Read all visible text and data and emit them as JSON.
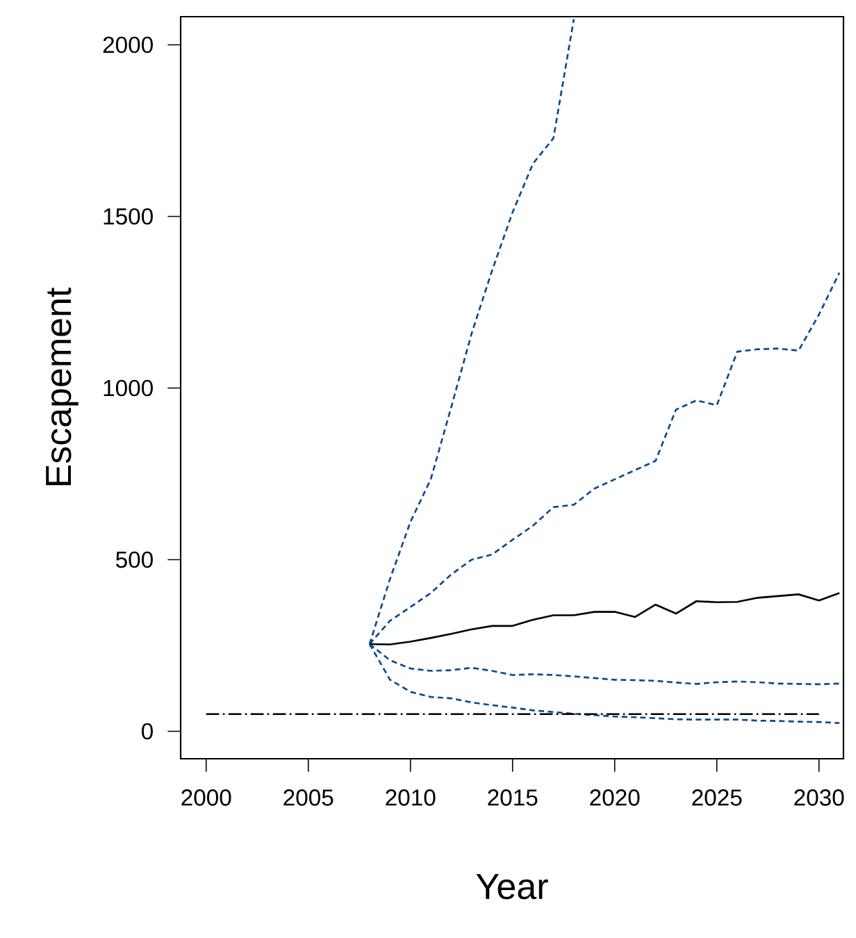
{
  "chart_data": {
    "type": "line",
    "xlabel": "Year",
    "ylabel": "Escapement",
    "xlim": [
      1998.75,
      2031.2
    ],
    "ylim": [
      -80,
      2082
    ],
    "xticks": [
      2000,
      2005,
      2010,
      2015,
      2020,
      2025,
      2030
    ],
    "yticks": [
      0,
      500,
      1000,
      1500,
      2000
    ],
    "series": [
      {
        "color": "#0b4a8c",
        "line_style": "dashed",
        "x": [
          2008,
          2009,
          2010,
          2011,
          2012,
          2013,
          2014,
          2015,
          2016,
          2017,
          2018
        ],
        "values": [
          254,
          444,
          610,
          735,
          945,
          1160,
          1343,
          1512,
          1654,
          1728,
          2075
        ]
      },
      {
        "color": "#0b4a8c",
        "line_style": "dashed",
        "x": [
          2008,
          2009,
          2010,
          2011,
          2012,
          2013,
          2014,
          2015,
          2016,
          2017,
          2018,
          2019,
          2020,
          2021,
          2022,
          2023,
          2024,
          2025,
          2026,
          2027,
          2028,
          2029,
          2030,
          2031
        ],
        "values": [
          254,
          322,
          362,
          403,
          457,
          500,
          515,
          558,
          599,
          653,
          660,
          707,
          734,
          761,
          788,
          937,
          964,
          950,
          1106,
          1113,
          1115,
          1109,
          1214,
          1336
        ]
      },
      {
        "color": "#000000",
        "line_style": "solid",
        "x": [
          2008,
          2009,
          2010,
          2011,
          2012,
          2013,
          2014,
          2015,
          2016,
          2017,
          2018,
          2019,
          2020,
          2021,
          2022,
          2023,
          2024,
          2025,
          2026,
          2027,
          2028,
          2029,
          2030,
          2031
        ],
        "values": [
          254,
          253,
          261,
          272,
          284,
          297,
          307,
          307,
          325,
          338,
          338,
          348,
          348,
          333,
          369,
          343,
          379,
          376,
          377,
          389,
          394,
          399,
          381,
          403
        ]
      },
      {
        "color": "#0b4a8c",
        "line_style": "dashed",
        "x": [
          2008,
          2009,
          2010,
          2011,
          2012,
          2013,
          2014,
          2015,
          2016,
          2017,
          2018,
          2019,
          2020,
          2021,
          2022,
          2023,
          2024,
          2025,
          2026,
          2027,
          2028,
          2029,
          2030,
          2031
        ],
        "values": [
          254,
          207,
          183,
          176,
          178,
          185,
          176,
          164,
          166,
          164,
          160,
          155,
          150,
          149,
          147,
          142,
          138,
          143,
          145,
          143,
          139,
          138,
          137,
          139
        ]
      },
      {
        "color": "#0b4a8c",
        "line_style": "dashed",
        "x": [
          2008,
          2009,
          2010,
          2011,
          2012,
          2013,
          2014,
          2015,
          2016,
          2017,
          2018,
          2019,
          2020,
          2021,
          2022,
          2023,
          2024,
          2025,
          2026,
          2027,
          2028,
          2029,
          2030,
          2031
        ],
        "values": [
          254,
          150,
          115,
          100,
          96,
          84,
          76,
          69,
          61,
          56,
          51,
          47,
          43,
          41,
          38,
          35,
          34,
          34,
          34,
          31,
          30,
          28,
          27,
          24
        ]
      },
      {
        "color": "#000000",
        "line_style": "dashdot",
        "x": [
          2000,
          2030
        ],
        "values": [
          50,
          50
        ]
      }
    ]
  }
}
